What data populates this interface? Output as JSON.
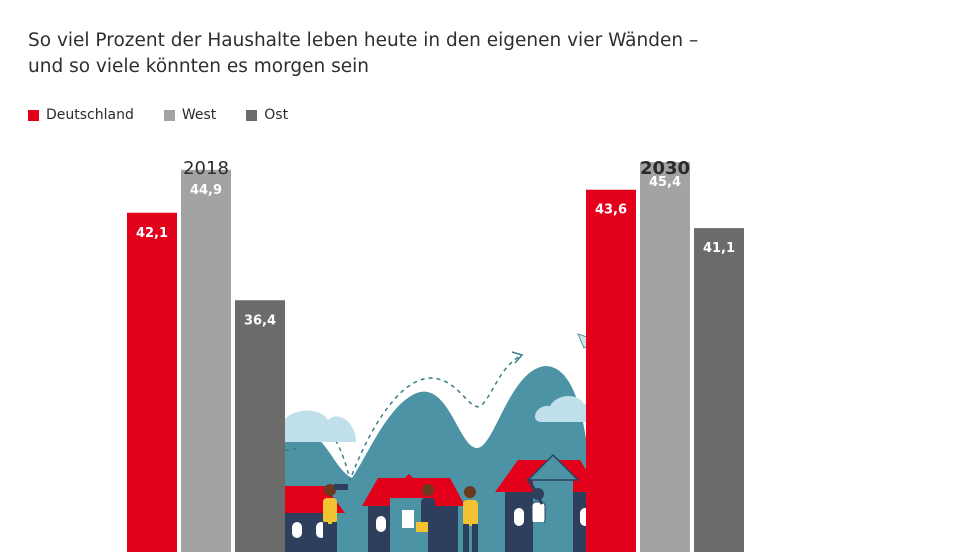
{
  "subtitle_line1": "So viel Prozent der Haushalte leben heute in den eigenen vier Wänden –",
  "subtitle_line2": "und so viele könnten es morgen sein",
  "colors": {
    "deutschland": "#e2001a",
    "west": "#a3a3a3",
    "ost": "#6b6b69"
  },
  "chart_data": {
    "type": "bar",
    "title": "",
    "subtitle": "So viel Prozent der Haushalte leben heute in den eigenen vier Wänden – und so viele könnten es morgen sein",
    "categories": [
      "2018",
      "2030"
    ],
    "series": [
      {
        "name": "Deutschland",
        "values": [
          42.1,
          43.6
        ],
        "labels": [
          "42,1",
          "43,6"
        ]
      },
      {
        "name": "West",
        "values": [
          44.9,
          45.4
        ],
        "labels": [
          "44,9",
          "45,4"
        ]
      },
      {
        "name": "Ost",
        "values": [
          36.4,
          41.1
        ],
        "labels": [
          "36,4",
          "41,1"
        ]
      }
    ],
    "legend_position": "top-left",
    "grid": false,
    "xlabel": "",
    "ylabel": ""
  }
}
